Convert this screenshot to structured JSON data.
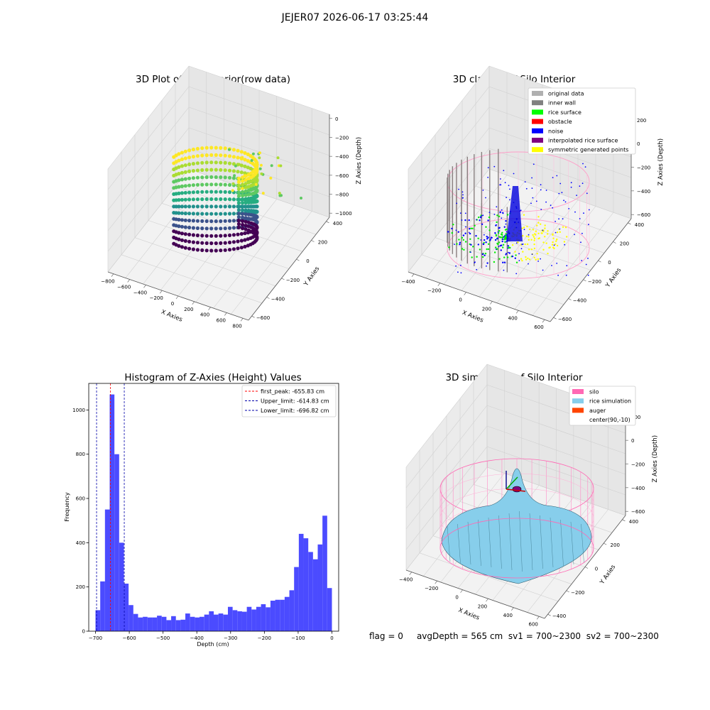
{
  "suptitle": "JEJER07 2026-06-17 03:25:44",
  "panels": {
    "raw": {
      "title": "3D Plot of Silo Interior(row data)",
      "x_label": "X Axies",
      "y_label": "Y Axies",
      "z_label": "Z Axies (Depth)",
      "x_ticks": [
        "−800",
        "−600",
        "−400",
        "−200",
        "0",
        "200",
        "400",
        "600",
        "800"
      ],
      "y_ticks": [
        "−600",
        "−400",
        "−200",
        "0",
        "200",
        "400"
      ],
      "z_ticks": [
        "0",
        "−200",
        "−400",
        "−600",
        "−800",
        "−1000"
      ]
    },
    "classify": {
      "title": "3D classify of Silo Interior",
      "x_label": "X Axies",
      "y_label": "Y Axies",
      "z_label": "Z Axies (Depth)",
      "x_ticks": [
        "−400",
        "−200",
        "0",
        "200",
        "400",
        "600"
      ],
      "y_ticks": [
        "−600",
        "−400",
        "−200",
        "0",
        "200",
        "400"
      ],
      "z_ticks": [
        "200",
        "0",
        "−200",
        "−400",
        "−600"
      ],
      "legend": [
        {
          "label": "original data",
          "color": "#b0b0b0"
        },
        {
          "label": "inner wall",
          "color": "#808080"
        },
        {
          "label": "rice surface",
          "color": "#00ff00"
        },
        {
          "label": "obstacle",
          "color": "#ff0000"
        },
        {
          "label": "noise",
          "color": "#0000ff"
        },
        {
          "label": "interpolated rice surface",
          "color": "#800080"
        },
        {
          "label": "symmetric generated points",
          "color": "#ffff00"
        }
      ]
    },
    "simulation": {
      "title": "3D simulation of Silo Interior",
      "x_label": "X Axies",
      "y_label": "Y Axies",
      "z_label": "Z Axies (Depth)",
      "x_ticks": [
        "−400",
        "−200",
        "0",
        "200",
        "400",
        "600"
      ],
      "y_ticks": [
        "−400",
        "−200",
        "0",
        "200",
        "400"
      ],
      "z_ticks": [
        "200",
        "0",
        "−200",
        "−400",
        "−600"
      ],
      "legend": [
        {
          "label": "silo",
          "color": "#ff69b4"
        },
        {
          "label": "rice simulation",
          "color": "#87ceeb"
        },
        {
          "label": "auger",
          "color": "#ff4500"
        },
        {
          "label": "center(90,-10)",
          "color": ""
        }
      ]
    }
  },
  "chart_data": [
    {
      "type": "histogram",
      "title": "Histogram of Z-Axies (Height) Values",
      "xlabel": "Depth (cm)",
      "ylabel": "Frequency",
      "xlim": [
        -720,
        20
      ],
      "ylim": [
        0,
        1120
      ],
      "x_ticks": [
        -700,
        -600,
        -500,
        -400,
        -300,
        -200,
        -100,
        0
      ],
      "y_ticks": [
        0,
        200,
        400,
        600,
        800,
        1000
      ],
      "bar_color": "#4b4bff",
      "bin_start": -700,
      "bin_width": 14,
      "values": [
        95,
        225,
        550,
        1070,
        800,
        400,
        215,
        118,
        78,
        62,
        65,
        62,
        62,
        70,
        65,
        50,
        68,
        50,
        52,
        80,
        65,
        62,
        65,
        75,
        90,
        75,
        80,
        75,
        110,
        95,
        90,
        88,
        110,
        98,
        110,
        122,
        108,
        138,
        142,
        142,
        155,
        185,
        290,
        440,
        420,
        358,
        325,
        392,
        522,
        195
      ],
      "vlines": [
        {
          "label": "first_peak: -655.83 cm",
          "x": -655.83,
          "color": "#ff0000"
        },
        {
          "label": "Upper_limit: -614.83 cm",
          "x": -614.83,
          "color": "#0000aa"
        },
        {
          "label": "Lower_limit: -696.82 cm",
          "x": -696.82,
          "color": "#0000aa"
        }
      ]
    }
  ],
  "status": {
    "flag": "flag = 0",
    "avg_depth": "avgDepth = 565 cm",
    "sv1": "sv1 = 700~2300",
    "sv2": "sv2 = 700~2300"
  }
}
